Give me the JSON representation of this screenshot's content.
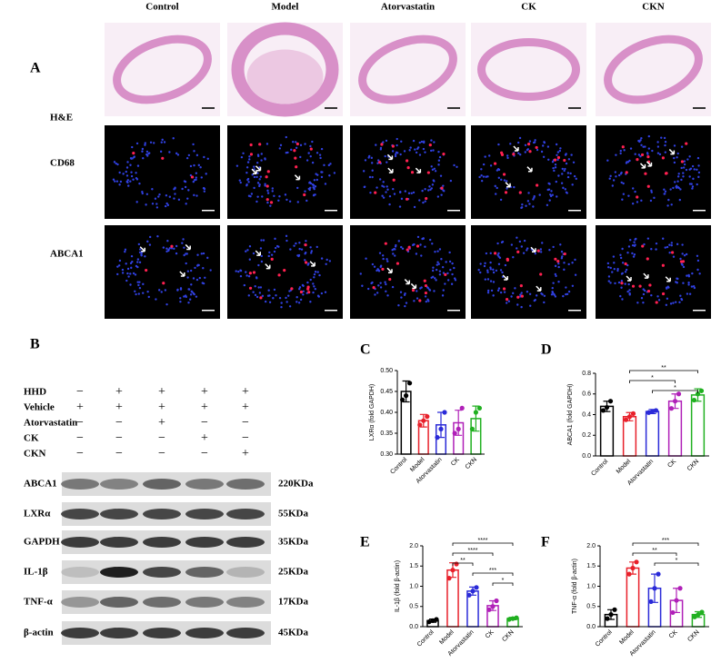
{
  "panel_labels": [
    "A",
    "B",
    "C",
    "D",
    "E",
    "F"
  ],
  "panel_a": {
    "columns": [
      "Control",
      "Model",
      "Atorvastatin",
      "CK",
      "CKN"
    ],
    "rows": [
      "H&E",
      "CD68",
      "ABCA1"
    ]
  },
  "panel_b": {
    "treatments": [
      {
        "name": "HHD",
        "signs": [
          "−",
          "+",
          "+",
          "+",
          "+"
        ]
      },
      {
        "name": "Vehicle",
        "signs": [
          "+",
          "+",
          "+",
          "+",
          "+"
        ]
      },
      {
        "name": "Atorvastatin",
        "signs": [
          "−",
          "−",
          "+",
          "−",
          "−"
        ]
      },
      {
        "name": "CK",
        "signs": [
          "−",
          "−",
          "−",
          "+",
          "−"
        ]
      },
      {
        "name": "CKN",
        "signs": [
          "−",
          "−",
          "−",
          "−",
          "+"
        ]
      }
    ],
    "proteins": [
      {
        "name": "ABCA1",
        "size": "220KDa"
      },
      {
        "name": "LXRα",
        "size": "55KDa"
      },
      {
        "name": "GAPDH",
        "size": "35KDa"
      },
      {
        "name": "IL-1β",
        "size": "25KDa"
      },
      {
        "name": "TNF-α",
        "size": "17KDa"
      },
      {
        "name": "β-actin",
        "size": "45KDa"
      }
    ]
  },
  "chart_data": [
    {
      "type": "bar",
      "ylabel": "LXRα (fold GAPDH)",
      "categories": [
        "Control",
        "Model",
        "Atorvastatin",
        "CK",
        "CKN"
      ],
      "colors": [
        "#000000",
        "#e8202a",
        "#2a2ad8",
        "#b020b8",
        "#20b020"
      ],
      "values": [
        0.45,
        0.38,
        0.37,
        0.375,
        0.385
      ],
      "errors": [
        0.025,
        0.015,
        0.03,
        0.03,
        0.03
      ],
      "points": [
        [
          0.43,
          0.44,
          0.47
        ],
        [
          0.37,
          0.38,
          0.39
        ],
        [
          0.34,
          0.36,
          0.4
        ],
        [
          0.35,
          0.36,
          0.41
        ],
        [
          0.36,
          0.4,
          0.41
        ]
      ],
      "ylim": [
        0.3,
        0.5
      ],
      "yticks": [
        {
          "value": 0.3,
          "label": "0.30"
        },
        0.35,
        {
          "value": 0.4,
          "label": "0.40"
        },
        0.45,
        {
          "value": 0.5,
          "label": "0.50"
        }
      ],
      "significance": []
    },
    {
      "type": "bar",
      "ylabel": "ABCA1 (fold GAPDH)",
      "categories": [
        "Control",
        "Model",
        "Atorvastatin",
        "CK",
        "CKN"
      ],
      "colors": [
        "#000000",
        "#e8202a",
        "#2a2ad8",
        "#b020b8",
        "#20b020"
      ],
      "values": [
        0.48,
        0.38,
        0.43,
        0.53,
        0.59
      ],
      "errors": [
        0.05,
        0.04,
        0.02,
        0.07,
        0.06
      ],
      "points": [
        [
          0.44,
          0.47,
          0.53
        ],
        [
          0.35,
          0.38,
          0.41
        ],
        [
          0.42,
          0.43,
          0.44
        ],
        [
          0.46,
          0.53,
          0.6
        ],
        [
          0.54,
          0.6,
          0.63
        ]
      ],
      "ylim": [
        0,
        0.8
      ],
      "yticks": [
        {
          "value": 0,
          "label": "0.0"
        },
        0.2,
        0.4,
        0.6,
        0.8
      ],
      "significance": [
        {
          "label": "**",
          "between": [
            "Model",
            "CKN"
          ]
        },
        {
          "label": "*",
          "between": [
            "Model",
            "CK"
          ]
        },
        {
          "label": "*",
          "between": [
            "Atorvastatin",
            "CKN"
          ]
        }
      ]
    },
    {
      "type": "bar",
      "ylabel": "IL-1β (fold β-actin)",
      "categories": [
        "Control",
        "Model",
        "Atorvastatin",
        "CK",
        "CKN"
      ],
      "colors": [
        "#000000",
        "#e8202a",
        "#2a2ad8",
        "#b020b8",
        "#20b020"
      ],
      "values": [
        0.15,
        1.4,
        0.88,
        0.52,
        0.2
      ],
      "errors": [
        0.04,
        0.18,
        0.1,
        0.12,
        0.03
      ],
      "points": [
        [
          0.12,
          0.15,
          0.18
        ],
        [
          1.2,
          1.4,
          1.55
        ],
        [
          0.78,
          0.88,
          0.97
        ],
        [
          0.42,
          0.5,
          0.64
        ],
        [
          0.18,
          0.2,
          0.22
        ]
      ],
      "ylim": [
        0,
        2
      ],
      "yticks": [
        {
          "value": 0,
          "label": "0.0"
        },
        0.5,
        {
          "value": 1,
          "label": "1.0"
        },
        1.5,
        {
          "value": 2,
          "label": "2.0"
        }
      ],
      "significance": [
        {
          "label": "****",
          "between": [
            "Model",
            "CKN"
          ]
        },
        {
          "label": "****",
          "between": [
            "Model",
            "CK"
          ]
        },
        {
          "label": "**",
          "between": [
            "Model",
            "Atorvastatin"
          ]
        },
        {
          "label": "***",
          "between": [
            "Atorvastatin",
            "CKN"
          ]
        },
        {
          "label": "*",
          "between": [
            "CK",
            "CKN"
          ]
        }
      ]
    },
    {
      "type": "bar",
      "ylabel": "TNF-α (fold β-actin)",
      "categories": [
        "Control",
        "Model",
        "Atorvastatin",
        "CK",
        "CKN"
      ],
      "colors": [
        "#000000",
        "#e8202a",
        "#2a2ad8",
        "#b020b8",
        "#20b020"
      ],
      "values": [
        0.3,
        1.45,
        0.95,
        0.65,
        0.3
      ],
      "errors": [
        0.12,
        0.15,
        0.35,
        0.3,
        0.07
      ],
      "points": [
        [
          0.2,
          0.3,
          0.42
        ],
        [
          1.3,
          1.45,
          1.6
        ],
        [
          0.62,
          0.95,
          1.3
        ],
        [
          0.35,
          0.65,
          0.95
        ],
        [
          0.24,
          0.3,
          0.36
        ]
      ],
      "ylim": [
        0,
        2
      ],
      "yticks": [
        {
          "value": 0,
          "label": "0.0"
        },
        0.5,
        {
          "value": 1,
          "label": "1.0"
        },
        1.5,
        {
          "value": 2,
          "label": "2.0"
        }
      ],
      "significance": [
        {
          "label": "***",
          "between": [
            "Model",
            "CKN"
          ]
        },
        {
          "label": "**",
          "between": [
            "Model",
            "CK"
          ]
        },
        {
          "label": "*",
          "between": [
            "Atorvastatin",
            "CKN"
          ]
        }
      ]
    }
  ]
}
